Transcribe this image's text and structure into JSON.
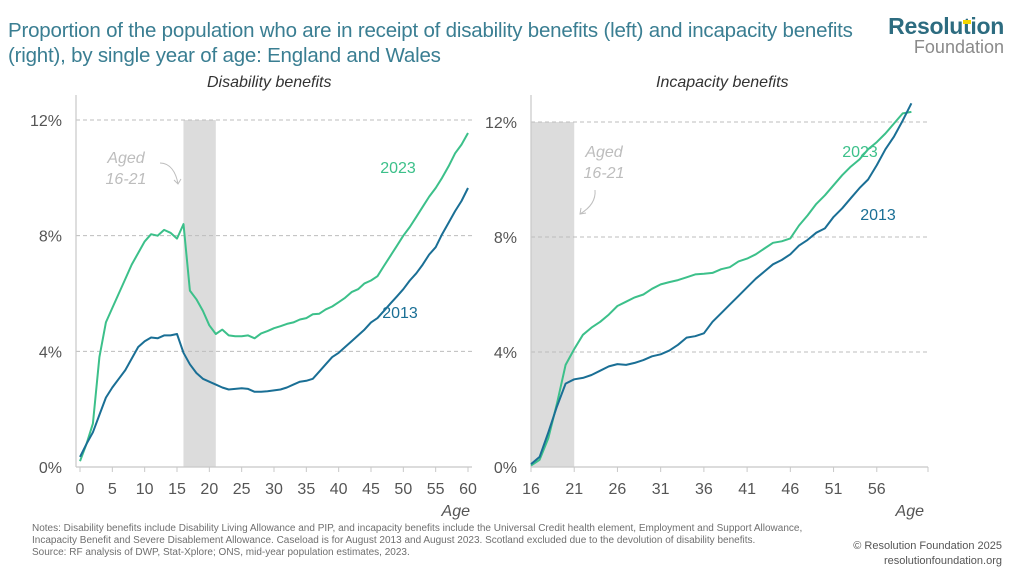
{
  "header": {
    "title": "Proportion of the population who are in receipt of disability benefits (left) and incapacity benefits (right), by single year of age: England and Wales",
    "logo_line1": "Resolution",
    "logo_line2": "Foundation"
  },
  "colors": {
    "title": "#3a7e92",
    "series_2023": "#3cc08a",
    "series_2013": "#1a6f95",
    "shade": "#dcdcdc",
    "annotation": "#bdbdbd"
  },
  "chart_data": [
    {
      "type": "line",
      "title": "Disability benefits",
      "xlabel": "Age",
      "ylabel": "",
      "xlim": [
        0,
        60
      ],
      "ylim": [
        0,
        12
      ],
      "yticks": [
        "0%",
        "4%",
        "8%",
        "12%"
      ],
      "ytick_values": [
        0,
        4,
        8,
        12
      ],
      "xticks": [
        0,
        5,
        10,
        15,
        20,
        25,
        30,
        35,
        40,
        45,
        50,
        55,
        60
      ],
      "grid": "horizontal dashed",
      "shaded_region": {
        "from": 16,
        "to": 21,
        "label_line1": "Aged",
        "label_line2": "16-21"
      },
      "series": [
        {
          "name": "2023",
          "label": "2023",
          "x": [
            0,
            1,
            2,
            3,
            4,
            5,
            6,
            7,
            8,
            9,
            10,
            11,
            12,
            13,
            14,
            15,
            16,
            17,
            18,
            19,
            20,
            21,
            22,
            23,
            24,
            25,
            26,
            27,
            28,
            29,
            30,
            31,
            32,
            33,
            34,
            35,
            36,
            37,
            38,
            39,
            40,
            41,
            42,
            43,
            44,
            45,
            46,
            47,
            48,
            49,
            50,
            51,
            52,
            53,
            54,
            55,
            56,
            57,
            58,
            59,
            60
          ],
          "values": [
            0.2,
            0.8,
            1.5,
            3.8,
            5.0,
            5.5,
            6.0,
            6.5,
            7.0,
            7.4,
            7.8,
            8.05,
            8.0,
            8.2,
            8.1,
            7.9,
            8.4,
            6.1,
            5.8,
            5.4,
            4.9,
            4.6,
            4.75,
            4.55,
            4.52,
            4.52,
            4.55,
            4.45,
            4.62,
            4.7,
            4.8,
            4.87,
            4.95,
            5.0,
            5.1,
            5.15,
            5.28,
            5.3,
            5.45,
            5.55,
            5.7,
            5.85,
            6.05,
            6.15,
            6.35,
            6.45,
            6.6,
            6.95,
            7.3,
            7.65,
            8.0,
            8.3,
            8.65,
            9.0,
            9.35,
            9.65,
            10.0,
            10.4,
            10.85,
            11.15,
            11.55
          ]
        },
        {
          "name": "2013",
          "label": "2013",
          "x": [
            0,
            1,
            2,
            3,
            4,
            5,
            6,
            7,
            8,
            9,
            10,
            11,
            12,
            13,
            14,
            15,
            16,
            17,
            18,
            19,
            20,
            21,
            22,
            23,
            24,
            25,
            26,
            27,
            28,
            29,
            30,
            31,
            32,
            33,
            34,
            35,
            36,
            37,
            38,
            39,
            40,
            41,
            42,
            43,
            44,
            45,
            46,
            47,
            48,
            49,
            50,
            51,
            52,
            53,
            54,
            55,
            56,
            57,
            58,
            59,
            60
          ],
          "values": [
            0.35,
            0.8,
            1.2,
            1.8,
            2.4,
            2.75,
            3.05,
            3.35,
            3.75,
            4.15,
            4.35,
            4.48,
            4.45,
            4.55,
            4.55,
            4.6,
            3.95,
            3.55,
            3.25,
            3.05,
            2.95,
            2.85,
            2.75,
            2.68,
            2.7,
            2.72,
            2.7,
            2.6,
            2.6,
            2.62,
            2.65,
            2.68,
            2.75,
            2.85,
            2.95,
            2.98,
            3.05,
            3.3,
            3.55,
            3.8,
            3.95,
            4.15,
            4.35,
            4.55,
            4.75,
            5.0,
            5.15,
            5.4,
            5.65,
            5.9,
            6.15,
            6.45,
            6.7,
            7.0,
            7.35,
            7.6,
            8.05,
            8.45,
            8.85,
            9.2,
            9.65
          ]
        }
      ]
    },
    {
      "type": "line",
      "title": "Incapacity benefits",
      "xlabel": "Age",
      "ylabel": "",
      "xlim": [
        16,
        61
      ],
      "ylim": [
        0,
        12
      ],
      "yticks": [
        "0%",
        "4%",
        "8%",
        "12%"
      ],
      "ytick_values": [
        0,
        4,
        8,
        12
      ],
      "xticks": [
        16,
        21,
        26,
        31,
        36,
        41,
        46,
        51,
        56
      ],
      "grid": "horizontal dashed",
      "shaded_region": {
        "from": 16,
        "to": 21,
        "label_line1": "Aged",
        "label_line2": "16-21"
      },
      "series": [
        {
          "name": "2023",
          "label": "2023",
          "x": [
            16,
            17,
            18,
            19,
            20,
            21,
            22,
            23,
            24,
            25,
            26,
            27,
            28,
            29,
            30,
            31,
            32,
            33,
            34,
            35,
            36,
            37,
            38,
            39,
            40,
            41,
            42,
            43,
            44,
            45,
            46,
            47,
            48,
            49,
            50,
            51,
            52,
            53,
            54,
            55,
            56,
            57,
            58,
            59,
            60
          ],
          "values": [
            0.05,
            0.25,
            1.0,
            2.2,
            3.55,
            4.1,
            4.6,
            4.85,
            5.05,
            5.3,
            5.6,
            5.75,
            5.9,
            6.0,
            6.2,
            6.35,
            6.43,
            6.5,
            6.6,
            6.7,
            6.72,
            6.75,
            6.88,
            6.95,
            7.15,
            7.25,
            7.4,
            7.6,
            7.8,
            7.85,
            7.95,
            8.4,
            8.75,
            9.15,
            9.45,
            9.8,
            10.15,
            10.45,
            10.7,
            11.05,
            11.3,
            11.6,
            11.95,
            12.3,
            12.35
          ]
        },
        {
          "name": "2013",
          "label": "2013",
          "x": [
            16,
            17,
            18,
            19,
            20,
            21,
            22,
            23,
            24,
            25,
            26,
            27,
            28,
            29,
            30,
            31,
            32,
            33,
            34,
            35,
            36,
            37,
            38,
            39,
            40,
            41,
            42,
            43,
            44,
            45,
            46,
            47,
            48,
            49,
            50,
            51,
            52,
            53,
            54,
            55,
            56,
            57,
            58,
            59,
            60
          ],
          "values": [
            0.1,
            0.35,
            1.2,
            2.1,
            2.9,
            3.05,
            3.1,
            3.2,
            3.35,
            3.5,
            3.58,
            3.55,
            3.62,
            3.72,
            3.85,
            3.92,
            4.05,
            4.25,
            4.5,
            4.55,
            4.65,
            5.05,
            5.35,
            5.65,
            5.95,
            6.25,
            6.55,
            6.8,
            7.05,
            7.2,
            7.4,
            7.7,
            7.9,
            8.15,
            8.3,
            8.7,
            9.0,
            9.35,
            9.7,
            10.0,
            10.5,
            11.05,
            11.5,
            12.05,
            12.65
          ]
        }
      ]
    }
  ],
  "footer": {
    "notes": "Notes: Disability benefits include Disability Living Allowance and PIP, and incapacity benefits include the Universal Credit health element, Employment and Support Allowance, Incapacity Benefit and Severe Disablement Allowance. Caseload is for August 2013 and August 2023. Scotland excluded due to the devolution of disability benefits.",
    "source": "Source: RF analysis of DWP, Stat-Xplore; ONS, mid-year population estimates, 2023.",
    "copyright": "© Resolution Foundation 2025",
    "website": "resolutionfoundation.org"
  }
}
